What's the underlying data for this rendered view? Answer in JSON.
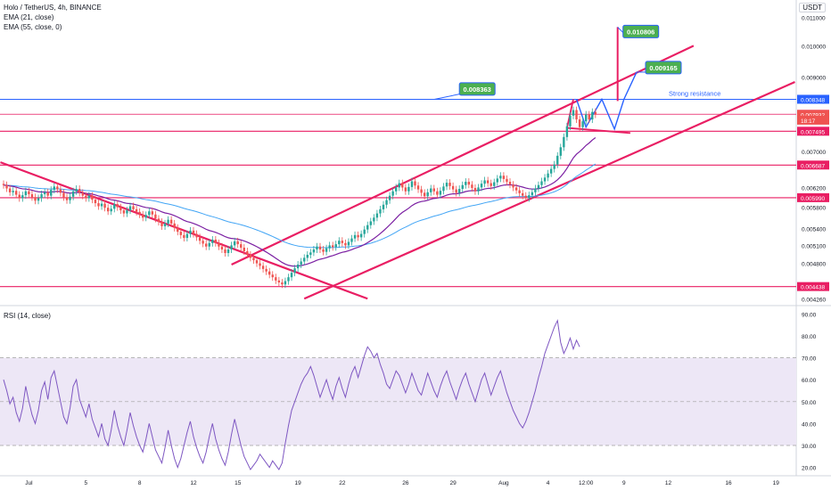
{
  "header": {
    "symbol_line": "Holo / TetherUS, 4h, BINANCE",
    "ema21_line": "EMA (21, close)",
    "ema55_line": "EMA (55, close, 0)",
    "rsi_line": "RSI (14, close)",
    "currency": "USDT"
  },
  "colors": {
    "up": "#26a69a",
    "down": "#ef5350",
    "ema21": "#7b1fa2",
    "ema55": "#42a5f5",
    "trend": "#e91e63",
    "resistance": "#2962ff",
    "projection": "#2962ff",
    "rsi": "#7e57c2",
    "rsi_band": "#ede7f6",
    "callout_bg": "#4caf50",
    "callout_border": "#2962ff"
  },
  "annotations": {
    "strong_resistance": "Strong resistance",
    "callouts": [
      "0.008363",
      "0.010806",
      "0.009165"
    ]
  },
  "chart_data": [
    {
      "type": "candlestick",
      "title": "Holo / TetherUS, 4h, BINANCE",
      "xlabel": "",
      "ylabel": "USDT",
      "ylim": [
        0.0042,
        0.0116
      ],
      "y_scale": "log",
      "x_ticks": [
        "Jul",
        "5",
        "8",
        "12",
        "15",
        "19",
        "22",
        "26",
        "29",
        "Aug",
        "4",
        "12:00",
        "9",
        "12",
        "16",
        "19"
      ],
      "y_ticks": [
        "0.011000",
        "0.010000",
        "0.009000",
        "0.007000",
        "0.006200",
        "0.005800",
        "0.005400",
        "0.005100",
        "0.004800",
        "0.004260"
      ],
      "price_badges": [
        {
          "label": "0.008348",
          "color": "#2962ff"
        },
        {
          "label": "0.007936",
          "color": "#e91e63"
        },
        {
          "label": "0.007932",
          "color": "#ef5350"
        },
        {
          "label": "18:17",
          "color": "#ef5350"
        },
        {
          "label": "0.007495",
          "color": "#e91e63"
        },
        {
          "label": "0.006687",
          "color": "#e91e63"
        },
        {
          "label": "0.005990",
          "color": "#e91e63"
        },
        {
          "label": "0.004438",
          "color": "#e91e63"
        }
      ],
      "horizontal_levels": [
        0.008348,
        0.007936,
        0.007495,
        0.006687,
        0.00599,
        0.004438
      ],
      "close": [
        0.00625,
        0.00618,
        0.0061,
        0.00613,
        0.00605,
        0.00598,
        0.00604,
        0.00612,
        0.00606,
        0.006,
        0.00593,
        0.00598,
        0.00606,
        0.0061,
        0.00603,
        0.00615,
        0.00622,
        0.00616,
        0.00609,
        0.006,
        0.00594,
        0.00601,
        0.00612,
        0.00617,
        0.00609,
        0.00603,
        0.00598,
        0.00603,
        0.00595,
        0.00588,
        0.00582,
        0.00587,
        0.00579,
        0.00572,
        0.00577,
        0.00586,
        0.0058,
        0.00574,
        0.00568,
        0.00574,
        0.00582,
        0.00576,
        0.00571,
        0.00566,
        0.0056,
        0.00565,
        0.00572,
        0.00566,
        0.00558,
        0.00552,
        0.00544,
        0.00549,
        0.00556,
        0.00549,
        0.00541,
        0.00534,
        0.00528,
        0.00523,
        0.0053,
        0.00536,
        0.0053,
        0.00524,
        0.00518,
        0.00513,
        0.00508,
        0.00514,
        0.0052,
        0.00514,
        0.00508,
        0.00503,
        0.00497,
        0.00503,
        0.0051,
        0.00517,
        0.00512,
        0.00506,
        0.005,
        0.00494,
        0.00489,
        0.00485,
        0.0048,
        0.00476,
        0.00471,
        0.00467,
        0.00462,
        0.00458,
        0.00453,
        0.0045,
        0.00447,
        0.00452,
        0.00458,
        0.00465,
        0.00472,
        0.00478,
        0.00483,
        0.00489,
        0.00494,
        0.00498,
        0.00503,
        0.00508,
        0.00503,
        0.00499,
        0.00505,
        0.0051,
        0.00507,
        0.00512,
        0.00518,
        0.00514,
        0.0051,
        0.00516,
        0.00522,
        0.00528,
        0.00524,
        0.0053,
        0.00538,
        0.00546,
        0.00553,
        0.0056,
        0.00568,
        0.00576,
        0.00585,
        0.00594,
        0.00603,
        0.00612,
        0.0062,
        0.00629,
        0.0062,
        0.00612,
        0.00621,
        0.00633,
        0.00624,
        0.00616,
        0.00609,
        0.00602,
        0.0061,
        0.00618,
        0.00612,
        0.00605,
        0.00613,
        0.00622,
        0.0063,
        0.00623,
        0.00616,
        0.00609,
        0.00617,
        0.00625,
        0.00632,
        0.00626,
        0.00619,
        0.00612,
        0.0062,
        0.00628,
        0.00635,
        0.00629,
        0.00623,
        0.00631,
        0.00639,
        0.00645,
        0.00638,
        0.00632,
        0.00626,
        0.0062,
        0.00614,
        0.00608,
        0.00603,
        0.00598,
        0.00604,
        0.0061,
        0.00618,
        0.00625,
        0.00633,
        0.00641,
        0.0065,
        0.0066,
        0.0067,
        0.0069,
        0.0071,
        0.00735,
        0.00762,
        0.0079,
        0.00805,
        0.0078,
        0.0076,
        0.00775,
        0.00793,
        0.0078,
        0.008,
        0.00793
      ]
    },
    {
      "type": "line",
      "title": "RSI (14, close)",
      "xlabel": "",
      "ylabel": "",
      "ylim": [
        17,
        93
      ],
      "y_ticks": [
        "90.00",
        "80.00",
        "70.00",
        "60.00",
        "50.00",
        "40.00",
        "30.00",
        "20.00"
      ],
      "band": [
        30,
        70
      ],
      "midline": 50,
      "values": [
        60,
        55,
        49,
        52,
        45,
        41,
        47,
        57,
        50,
        44,
        40,
        46,
        55,
        59,
        51,
        61,
        64,
        57,
        50,
        43,
        40,
        47,
        57,
        60,
        51,
        47,
        43,
        49,
        42,
        38,
        34,
        40,
        33,
        30,
        37,
        46,
        39,
        34,
        30,
        37,
        45,
        39,
        34,
        30,
        27,
        33,
        40,
        34,
        28,
        25,
        22,
        29,
        37,
        30,
        24,
        20,
        24,
        30,
        36,
        41,
        34,
        29,
        25,
        22,
        27,
        34,
        40,
        33,
        28,
        24,
        21,
        27,
        35,
        42,
        36,
        30,
        25,
        22,
        19,
        21,
        23,
        26,
        24,
        22,
        20,
        23,
        21,
        19,
        22,
        31,
        39,
        46,
        50,
        54,
        58,
        61,
        63,
        66,
        62,
        57,
        52,
        56,
        60,
        55,
        51,
        57,
        61,
        56,
        52,
        58,
        63,
        66,
        61,
        66,
        71,
        75,
        73,
        70,
        72,
        67,
        63,
        58,
        56,
        60,
        64,
        62,
        58,
        54,
        58,
        63,
        59,
        55,
        53,
        58,
        63,
        59,
        55,
        52,
        57,
        61,
        64,
        59,
        55,
        51,
        56,
        60,
        63,
        58,
        54,
        50,
        55,
        60,
        63,
        58,
        53,
        57,
        61,
        64,
        59,
        54,
        50,
        46,
        43,
        40,
        38,
        41,
        45,
        50,
        55,
        61,
        66,
        72,
        76,
        80,
        84,
        87,
        77,
        72,
        75,
        79,
        74,
        78,
        75
      ]
    }
  ]
}
